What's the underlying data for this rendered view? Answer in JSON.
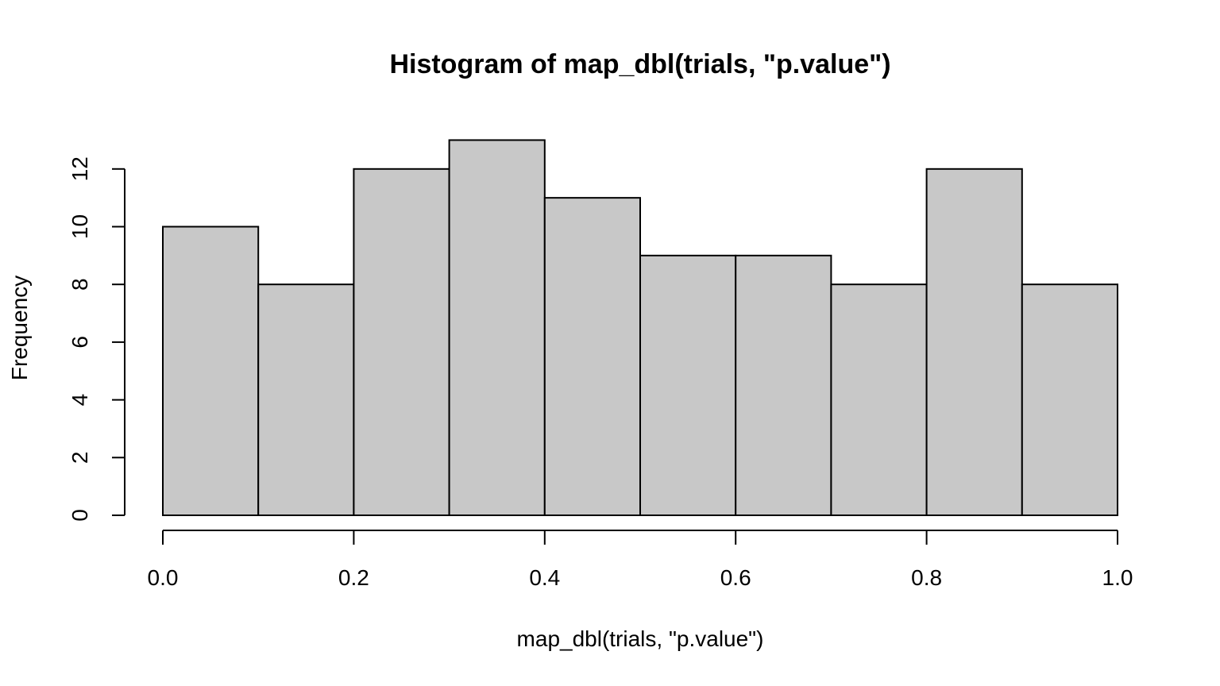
{
  "colors": {
    "bar_fill": "#c8c8c8",
    "bar_stroke": "#000000",
    "axis": "#000000",
    "background": "#ffffff"
  },
  "chart_data": {
    "type": "bar",
    "title": "Histogram of map_dbl(trials, \"p.value\")",
    "xlabel": "map_dbl(trials, \"p.value\")",
    "ylabel": "Frequency",
    "bin_edges": [
      0.0,
      0.1,
      0.2,
      0.3,
      0.4,
      0.5,
      0.6,
      0.7,
      0.8,
      0.9,
      1.0
    ],
    "values": [
      10,
      8,
      12,
      13,
      11,
      9,
      9,
      8,
      12,
      8
    ],
    "xlim": [
      0.0,
      1.0
    ],
    "ylim": [
      0,
      13
    ],
    "x_ticks": [
      "0.0",
      "0.2",
      "0.4",
      "0.6",
      "0.8",
      "1.0"
    ],
    "y_ticks": [
      "0",
      "2",
      "4",
      "6",
      "8",
      "10",
      "12"
    ],
    "grid": false,
    "legend": "none"
  }
}
